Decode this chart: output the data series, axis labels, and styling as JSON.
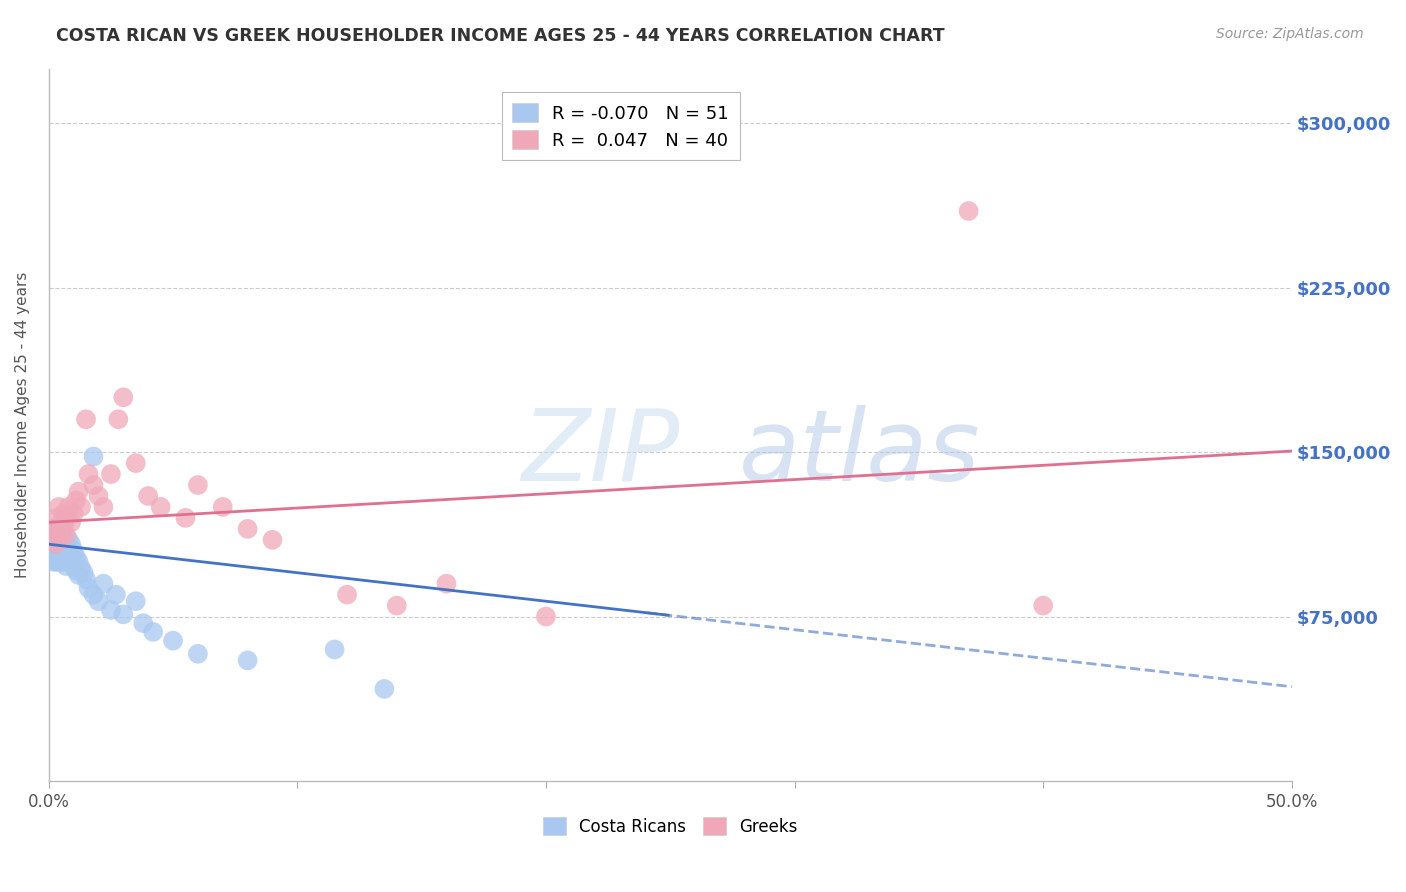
{
  "title": "COSTA RICAN VS GREEK HOUSEHOLDER INCOME AGES 25 - 44 YEARS CORRELATION CHART",
  "source": "Source: ZipAtlas.com",
  "ylabel": "Householder Income Ages 25 - 44 years",
  "watermark": "ZIPatlas",
  "legend_entries": [
    {
      "label": "Costa Ricans",
      "color": "#a8c8f0",
      "R": -0.07,
      "N": 51
    },
    {
      "label": "Greeks",
      "color": "#f0a8b8",
      "R": 0.047,
      "N": 40
    }
  ],
  "xlim": [
    0.0,
    0.5
  ],
  "ylim": [
    0,
    325000
  ],
  "yticks": [
    0,
    75000,
    150000,
    225000,
    300000
  ],
  "ytick_labels": [
    "",
    "$75,000",
    "$150,000",
    "$225,000",
    "$300,000"
  ],
  "xticks": [
    0.0,
    0.1,
    0.2,
    0.3,
    0.4,
    0.5
  ],
  "xtick_labels": [
    "0.0%",
    "",
    "",
    "",
    "",
    "50.0%"
  ],
  "background_color": "#ffffff",
  "grid_color": "#cccccc",
  "title_color": "#333333",
  "ytick_color": "#4472c4",
  "xtick_color": "#555555",
  "costa_rican_x": [
    0.001,
    0.001,
    0.002,
    0.002,
    0.002,
    0.003,
    0.003,
    0.003,
    0.004,
    0.004,
    0.004,
    0.004,
    0.005,
    0.005,
    0.005,
    0.005,
    0.006,
    0.006,
    0.006,
    0.007,
    0.007,
    0.007,
    0.008,
    0.008,
    0.009,
    0.009,
    0.01,
    0.01,
    0.011,
    0.011,
    0.012,
    0.012,
    0.013,
    0.014,
    0.015,
    0.016,
    0.018,
    0.02,
    0.022,
    0.025,
    0.027,
    0.03,
    0.035,
    0.038,
    0.042,
    0.05,
    0.06,
    0.08,
    0.115,
    0.135,
    0.018
  ],
  "costa_rican_y": [
    110000,
    105000,
    115000,
    110000,
    100000,
    108000,
    105000,
    100000,
    112000,
    108000,
    105000,
    100000,
    115000,
    110000,
    105000,
    100000,
    108000,
    104000,
    100000,
    106000,
    102000,
    98000,
    110000,
    105000,
    108000,
    100000,
    105000,
    98000,
    102000,
    96000,
    100000,
    94000,
    97000,
    95000,
    92000,
    88000,
    85000,
    82000,
    90000,
    78000,
    85000,
    76000,
    82000,
    72000,
    68000,
    64000,
    58000,
    55000,
    60000,
    42000,
    148000
  ],
  "greek_x": [
    0.001,
    0.002,
    0.003,
    0.003,
    0.004,
    0.004,
    0.005,
    0.005,
    0.006,
    0.006,
    0.007,
    0.007,
    0.008,
    0.009,
    0.01,
    0.011,
    0.012,
    0.013,
    0.015,
    0.016,
    0.018,
    0.02,
    0.022,
    0.025,
    0.028,
    0.03,
    0.035,
    0.04,
    0.045,
    0.055,
    0.06,
    0.07,
    0.08,
    0.09,
    0.12,
    0.14,
    0.16,
    0.2,
    0.37,
    0.4
  ],
  "greek_y": [
    110000,
    115000,
    120000,
    108000,
    125000,
    115000,
    118000,
    112000,
    122000,
    116000,
    120000,
    112000,
    125000,
    118000,
    122000,
    128000,
    132000,
    125000,
    165000,
    140000,
    135000,
    130000,
    125000,
    140000,
    165000,
    175000,
    145000,
    130000,
    125000,
    120000,
    135000,
    125000,
    115000,
    110000,
    85000,
    80000,
    90000,
    75000,
    260000,
    80000
  ],
  "cr_trend_start_x": 0.0,
  "cr_trend_solid_end_x": 0.25,
  "cr_trend_end_x": 0.5,
  "gr_trend_start_x": 0.0,
  "gr_trend_end_x": 0.5,
  "cr_line_color": "#4472c4",
  "gr_line_color": "#e07090"
}
